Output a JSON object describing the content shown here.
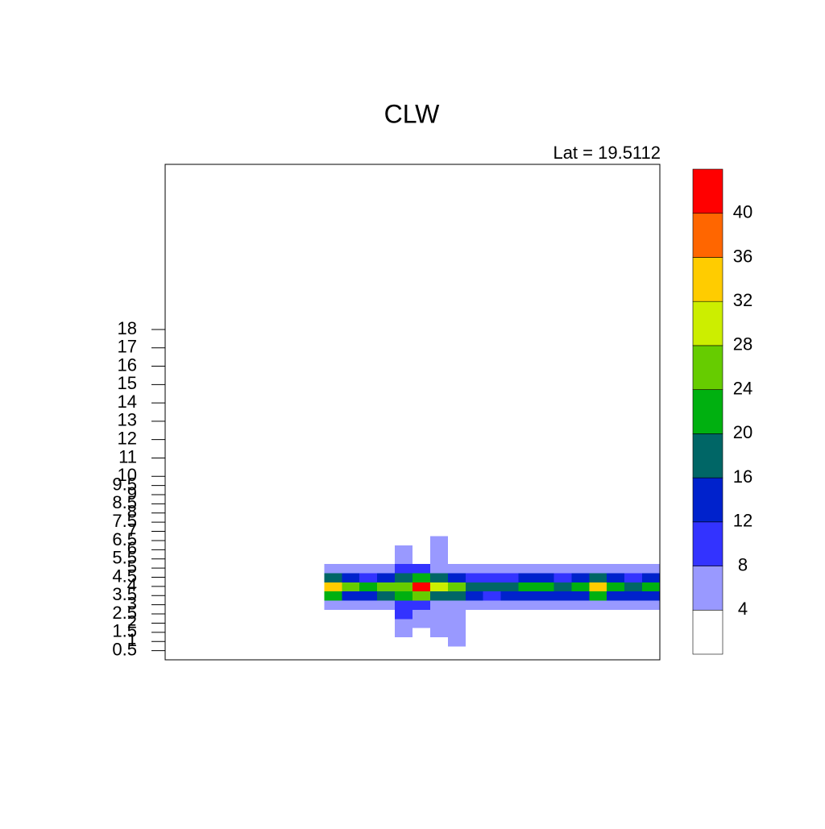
{
  "chart_data": {
    "type": "contour",
    "title": "CLW",
    "subtitle": "Lat =  19.5112",
    "y": [
      1,
      1.5,
      2,
      2.5,
      3,
      3.5,
      4,
      4.5,
      5,
      5.5,
      6,
      6.5
    ],
    "z": [
      [
        null,
        null,
        null,
        null,
        null,
        null,
        null,
        null,
        null,
        0,
        0,
        0,
        0,
        0,
        0,
        0,
        5,
        0,
        0,
        0,
        0,
        0,
        0,
        0,
        0,
        0,
        0,
        0
      ],
      [
        null,
        null,
        null,
        null,
        null,
        null,
        null,
        null,
        null,
        0,
        0,
        0,
        0,
        5,
        0,
        5,
        5,
        0,
        0,
        0,
        0,
        0,
        0,
        0,
        0,
        0,
        0,
        0
      ],
      [
        null,
        null,
        null,
        null,
        null,
        null,
        null,
        null,
        null,
        0,
        0,
        0,
        2,
        6,
        5,
        6,
        5,
        0,
        0,
        0,
        0,
        0,
        0,
        0,
        0,
        0,
        0,
        0
      ],
      [
        null,
        null,
        null,
        null,
        null,
        null,
        null,
        null,
        null,
        0,
        0,
        0,
        3,
        9,
        6,
        6,
        6,
        2,
        0,
        0,
        0,
        0,
        0,
        0,
        0,
        0,
        0,
        0
      ],
      [
        null,
        null,
        null,
        null,
        null,
        null,
        null,
        null,
        null,
        7,
        6,
        5,
        6,
        10,
        8,
        7,
        6,
        5,
        4,
        5,
        6,
        5,
        6,
        6,
        6,
        5,
        6,
        6
      ],
      [
        null,
        null,
        null,
        null,
        null,
        null,
        null,
        null,
        null,
        20,
        14,
        13,
        16,
        20,
        24,
        19,
        17,
        12,
        11,
        13,
        15,
        14,
        12,
        13,
        20,
        13,
        12,
        14
      ],
      [
        null,
        null,
        null,
        null,
        null,
        null,
        null,
        null,
        null,
        34,
        26,
        22,
        24,
        27,
        42,
        30,
        26,
        18,
        16,
        18,
        22,
        22,
        18,
        20,
        34,
        22,
        18,
        22
      ],
      [
        null,
        null,
        null,
        null,
        null,
        null,
        null,
        null,
        null,
        18,
        12,
        11,
        15,
        18,
        20,
        16,
        14,
        10,
        9,
        11,
        13,
        13,
        11,
        12,
        18,
        12,
        11,
        13
      ],
      [
        null,
        null,
        null,
        null,
        null,
        null,
        null,
        null,
        null,
        6,
        5,
        4,
        6,
        9,
        8,
        7,
        6,
        5,
        4,
        5,
        5,
        5,
        5,
        5,
        6,
        5,
        5,
        5
      ],
      [
        null,
        null,
        null,
        null,
        null,
        null,
        null,
        null,
        null,
        0,
        0,
        0,
        2,
        6,
        2,
        6,
        2,
        0,
        0,
        0,
        0,
        0,
        0,
        0,
        0,
        0,
        0,
        0
      ],
      [
        null,
        null,
        null,
        null,
        null,
        null,
        null,
        null,
        null,
        0,
        0,
        0,
        2,
        5,
        1,
        5,
        1,
        0,
        0,
        0,
        0,
        0,
        0,
        0,
        0,
        0,
        0,
        0
      ],
      [
        null,
        null,
        null,
        null,
        null,
        null,
        null,
        null,
        null,
        0,
        0,
        0,
        0,
        3,
        0,
        4,
        0,
        0,
        0,
        0,
        0,
        0,
        0,
        0,
        0,
        0,
        0,
        0
      ]
    ],
    "ylim": [
      0,
      27
    ],
    "yticks": [
      0.5,
      1,
      1.5,
      2,
      2.5,
      3,
      3.5,
      4,
      4.5,
      5,
      5.5,
      6,
      6.5,
      7,
      7.5,
      8,
      8.5,
      9,
      9.5,
      10,
      11,
      12,
      13,
      14,
      15,
      16,
      17,
      18
    ],
    "levels": [
      4,
      8,
      12,
      16,
      20,
      24,
      28,
      32,
      36,
      40
    ],
    "colors": [
      "#ffffff",
      "#9999ff",
      "#3333ff",
      "#0022cc",
      "#006666",
      "#00b010",
      "#66cc00",
      "#ccee00",
      "#ffcc00",
      "#ff6600",
      "#ff0000"
    ]
  }
}
